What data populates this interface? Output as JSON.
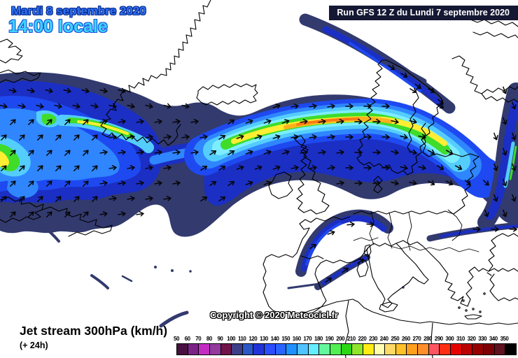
{
  "header": {
    "date_line": "Mardi 8 septembre 2020",
    "time_line": "14:00 locale",
    "run_info": "Run GFS 12 Z du Lundi 7 septembre 2020"
  },
  "footer": {
    "map_title": "Jet stream 300hPa (km/h)",
    "forecast_offset": "(+ 24h)",
    "copyright": "Copyright © 2020 Meteociel.fr"
  },
  "legend": {
    "unit": "km/h",
    "tick_labels": [
      "50",
      "60",
      "70",
      "80",
      "90",
      "100",
      "110",
      "120",
      "130",
      "140",
      "150",
      "160",
      "170",
      "180",
      "190",
      "200",
      "210",
      "220",
      "230",
      "240",
      "250",
      "260",
      "270",
      "280",
      "290",
      "300",
      "310",
      "320",
      "330",
      "340",
      "350"
    ],
    "cell_colors": [
      "#471040",
      "#7c2287",
      "#c32cc3",
      "#94399e",
      "#701348",
      "#3d3e87",
      "#2b57c8",
      "#2134d8",
      "#2b4eff",
      "#2a64ff",
      "#1e90ff",
      "#4fc2ff",
      "#63eeff",
      "#63f89c",
      "#52ef52",
      "#2bd614",
      "#8fe529",
      "#ffec16",
      "#ffffb2",
      "#ffd966",
      "#ffc22b",
      "#ffa01e",
      "#ff8f2b",
      "#ff5560",
      "#ff2d12",
      "#e60000",
      "#bc0000",
      "#970000",
      "#7d0007",
      "#5f1220",
      "#000000"
    ]
  },
  "colors": {
    "date_text": "#2f72f2",
    "date_outline": "#0a2c90",
    "time_text": "#41d3ff",
    "time_outline": "#1856dd",
    "run_bar_bg": "#151833",
    "run_bar_text": "#ffffff",
    "sea_land": "#ffffff",
    "coastline": "#000000",
    "band_navy": "#323a6e",
    "band_blue": "#1b2fc4",
    "band_blue2": "#1e49f0",
    "band_azure": "#2f86ff",
    "band_cyan": "#54cdfd",
    "band_light_cyan": "#7deeff",
    "band_green": "#3fdc2a",
    "band_yellow": "#ffee32",
    "band_orange": "#ffb01c",
    "band_deep_orange": "#ff7712",
    "arrow": "#000000"
  }
}
